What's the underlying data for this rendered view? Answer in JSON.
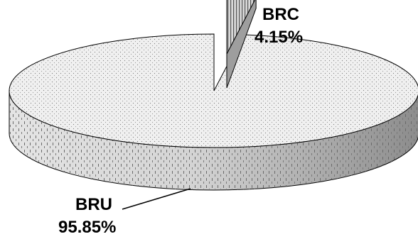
{
  "chart_data": {
    "type": "pie",
    "style": "3d-exploded",
    "slices": [
      {
        "label": "BRU",
        "value": 95.85,
        "value_label": "95.85%",
        "pattern": "dotted",
        "color": "#e6e6e6"
      },
      {
        "label": "BRC",
        "value": 4.15,
        "value_label": "4.15%",
        "pattern": "vertical-stripes",
        "color": "#bdbdbd",
        "exploded": true
      }
    ],
    "legend": "none"
  }
}
